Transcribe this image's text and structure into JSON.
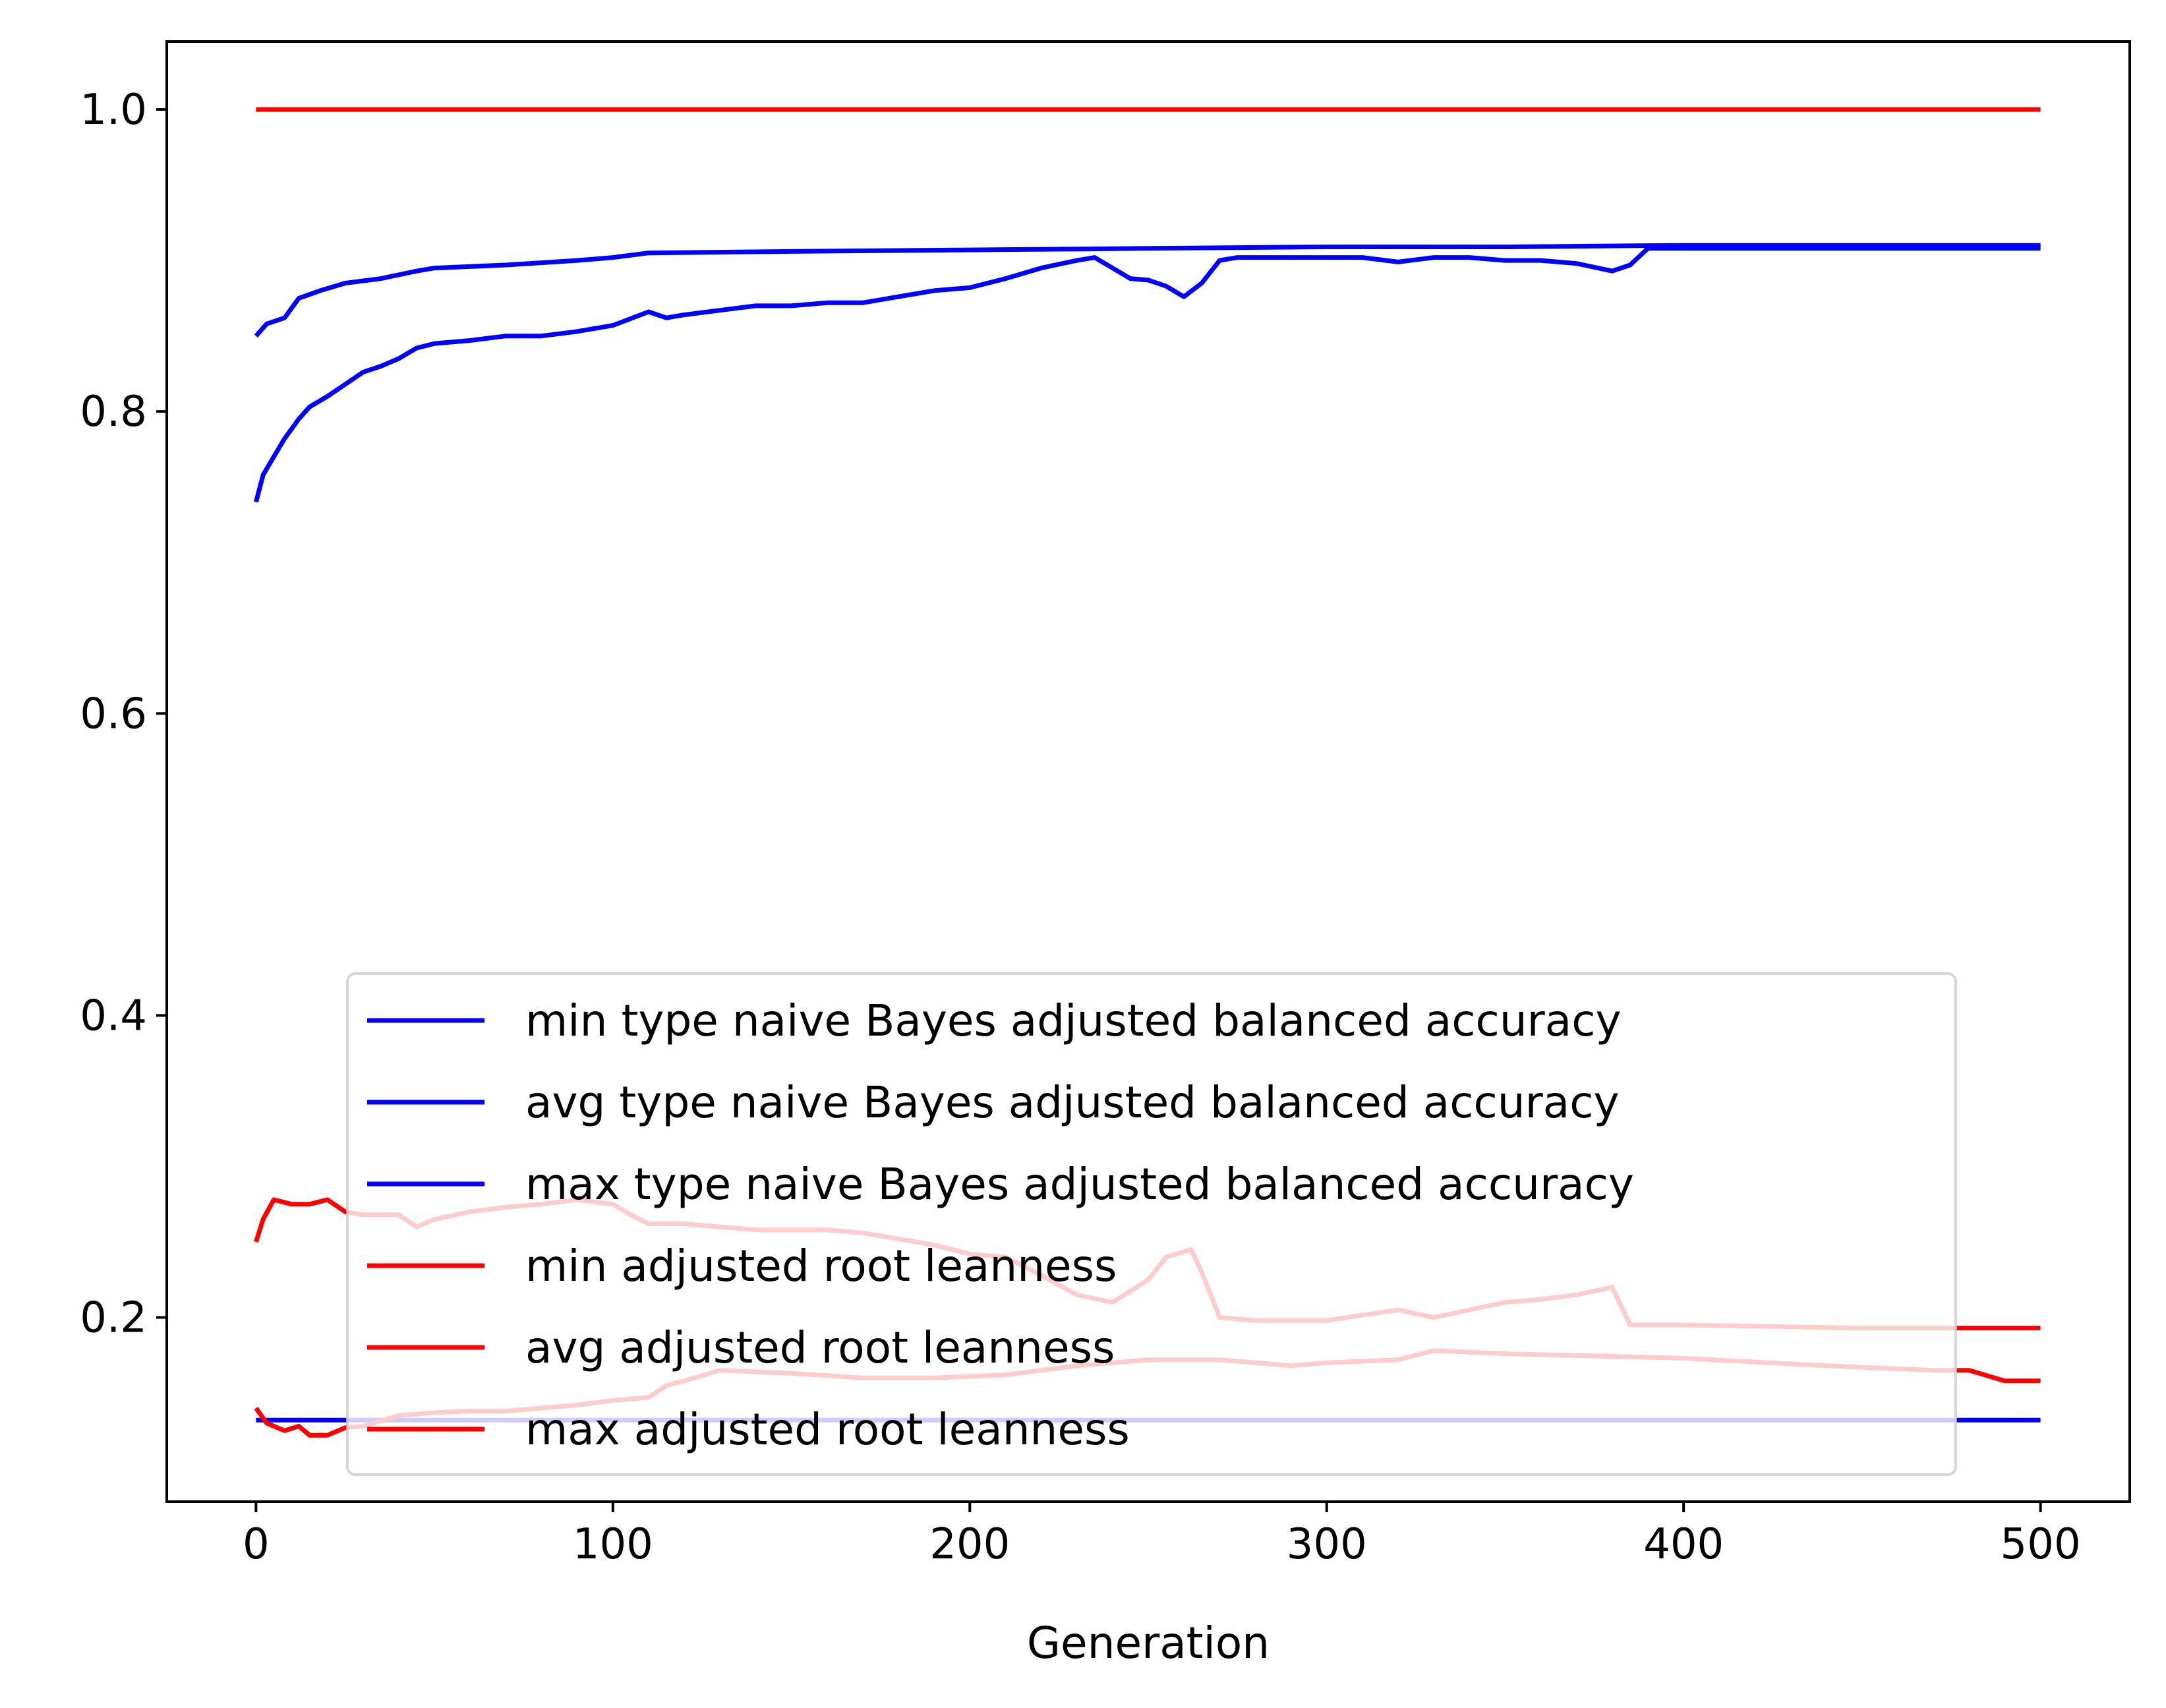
{
  "chart_data": {
    "type": "line",
    "title": "",
    "xlabel": "Generation",
    "ylabel": "",
    "xlim": [
      -25,
      525
    ],
    "ylim": [
      0.078,
      1.045
    ],
    "xticks": [
      0,
      100,
      200,
      300,
      400,
      500
    ],
    "xtick_labels": [
      "0",
      "100",
      "200",
      "300",
      "400",
      "500"
    ],
    "yticks": [
      0.2,
      0.4,
      0.6,
      0.8,
      1.0
    ],
    "ytick_labels": [
      "0.2",
      "0.4",
      "0.6",
      "0.8",
      "1.0"
    ],
    "grid": false,
    "legend_position": "lower center",
    "series": [
      {
        "name": "min type naive Bayes adjusted balanced accuracy",
        "color": "#0000ff",
        "points": [
          [
            0,
            0.132
          ],
          [
            500,
            0.132
          ]
        ]
      },
      {
        "name": "avg type naive Bayes adjusted balanced accuracy",
        "color": "#0000ff",
        "points": [
          [
            0,
            0.74
          ],
          [
            2,
            0.758
          ],
          [
            5,
            0.77
          ],
          [
            8,
            0.782
          ],
          [
            12,
            0.795
          ],
          [
            15,
            0.803
          ],
          [
            20,
            0.81
          ],
          [
            25,
            0.818
          ],
          [
            30,
            0.826
          ],
          [
            35,
            0.83
          ],
          [
            40,
            0.835
          ],
          [
            45,
            0.842
          ],
          [
            50,
            0.845
          ],
          [
            60,
            0.847
          ],
          [
            70,
            0.85
          ],
          [
            80,
            0.85
          ],
          [
            90,
            0.853
          ],
          [
            100,
            0.857
          ],
          [
            110,
            0.866
          ],
          [
            115,
            0.862
          ],
          [
            120,
            0.864
          ],
          [
            130,
            0.867
          ],
          [
            140,
            0.87
          ],
          [
            150,
            0.87
          ],
          [
            160,
            0.872
          ],
          [
            170,
            0.872
          ],
          [
            180,
            0.876
          ],
          [
            190,
            0.88
          ],
          [
            200,
            0.882
          ],
          [
            210,
            0.888
          ],
          [
            220,
            0.895
          ],
          [
            230,
            0.9
          ],
          [
            235,
            0.902
          ],
          [
            240,
            0.895
          ],
          [
            245,
            0.888
          ],
          [
            250,
            0.887
          ],
          [
            255,
            0.883
          ],
          [
            260,
            0.876
          ],
          [
            265,
            0.885
          ],
          [
            270,
            0.9
          ],
          [
            275,
            0.902
          ],
          [
            290,
            0.902
          ],
          [
            300,
            0.902
          ],
          [
            310,
            0.902
          ],
          [
            320,
            0.899
          ],
          [
            330,
            0.902
          ],
          [
            340,
            0.902
          ],
          [
            350,
            0.9
          ],
          [
            360,
            0.9
          ],
          [
            370,
            0.898
          ],
          [
            380,
            0.893
          ],
          [
            385,
            0.897
          ],
          [
            390,
            0.908
          ],
          [
            400,
            0.908
          ],
          [
            450,
            0.908
          ],
          [
            500,
            0.908
          ]
        ]
      },
      {
        "name": "max type naive Bayes adjusted balanced accuracy",
        "color": "#0000ff",
        "points": [
          [
            0,
            0.85
          ],
          [
            3,
            0.858
          ],
          [
            8,
            0.862
          ],
          [
            12,
            0.875
          ],
          [
            18,
            0.88
          ],
          [
            25,
            0.885
          ],
          [
            35,
            0.888
          ],
          [
            45,
            0.893
          ],
          [
            50,
            0.895
          ],
          [
            70,
            0.897
          ],
          [
            90,
            0.9
          ],
          [
            100,
            0.902
          ],
          [
            110,
            0.905
          ],
          [
            150,
            0.906
          ],
          [
            200,
            0.907
          ],
          [
            250,
            0.908
          ],
          [
            300,
            0.909
          ],
          [
            350,
            0.909
          ],
          [
            400,
            0.91
          ],
          [
            500,
            0.91
          ]
        ]
      },
      {
        "name": "min adjusted root leanness",
        "color": "#ff0000",
        "points": [
          [
            0,
            0.14
          ],
          [
            3,
            0.13
          ],
          [
            8,
            0.125
          ],
          [
            12,
            0.128
          ],
          [
            15,
            0.122
          ],
          [
            20,
            0.122
          ],
          [
            25,
            0.127
          ],
          [
            30,
            0.128
          ],
          [
            40,
            0.135
          ],
          [
            50,
            0.137
          ],
          [
            60,
            0.138
          ],
          [
            70,
            0.138
          ],
          [
            80,
            0.14
          ],
          [
            90,
            0.142
          ],
          [
            100,
            0.145
          ],
          [
            110,
            0.147
          ],
          [
            115,
            0.155
          ],
          [
            120,
            0.158
          ],
          [
            130,
            0.165
          ],
          [
            150,
            0.163
          ],
          [
            170,
            0.16
          ],
          [
            190,
            0.16
          ],
          [
            210,
            0.162
          ],
          [
            220,
            0.165
          ],
          [
            230,
            0.168
          ],
          [
            250,
            0.172
          ],
          [
            270,
            0.172
          ],
          [
            290,
            0.168
          ],
          [
            300,
            0.17
          ],
          [
            320,
            0.172
          ],
          [
            330,
            0.178
          ],
          [
            350,
            0.176
          ],
          [
            400,
            0.173
          ],
          [
            440,
            0.168
          ],
          [
            470,
            0.165
          ],
          [
            480,
            0.165
          ],
          [
            490,
            0.158
          ],
          [
            500,
            0.158
          ]
        ]
      },
      {
        "name": "avg adjusted root leanness",
        "color": "#ff0000",
        "points": [
          [
            0,
            0.25
          ],
          [
            2,
            0.265
          ],
          [
            5,
            0.278
          ],
          [
            10,
            0.275
          ],
          [
            15,
            0.275
          ],
          [
            20,
            0.278
          ],
          [
            25,
            0.27
          ],
          [
            30,
            0.268
          ],
          [
            40,
            0.268
          ],
          [
            45,
            0.26
          ],
          [
            50,
            0.265
          ],
          [
            60,
            0.27
          ],
          [
            70,
            0.273
          ],
          [
            80,
            0.275
          ],
          [
            90,
            0.278
          ],
          [
            100,
            0.275
          ],
          [
            105,
            0.268
          ],
          [
            110,
            0.262
          ],
          [
            120,
            0.262
          ],
          [
            130,
            0.26
          ],
          [
            140,
            0.258
          ],
          [
            150,
            0.258
          ],
          [
            160,
            0.258
          ],
          [
            170,
            0.256
          ],
          [
            180,
            0.252
          ],
          [
            190,
            0.248
          ],
          [
            200,
            0.242
          ],
          [
            210,
            0.24
          ],
          [
            220,
            0.228
          ],
          [
            230,
            0.215
          ],
          [
            240,
            0.21
          ],
          [
            250,
            0.225
          ],
          [
            255,
            0.24
          ],
          [
            262,
            0.245
          ],
          [
            265,
            0.23
          ],
          [
            270,
            0.2
          ],
          [
            280,
            0.198
          ],
          [
            300,
            0.198
          ],
          [
            320,
            0.205
          ],
          [
            330,
            0.2
          ],
          [
            350,
            0.21
          ],
          [
            360,
            0.212
          ],
          [
            370,
            0.215
          ],
          [
            380,
            0.22
          ],
          [
            385,
            0.195
          ],
          [
            400,
            0.195
          ],
          [
            450,
            0.193
          ],
          [
            500,
            0.193
          ]
        ]
      },
      {
        "name": "max adjusted root leanness",
        "color": "#ff0000",
        "points": [
          [
            0,
            1.0
          ],
          [
            500,
            1.0
          ]
        ]
      }
    ]
  }
}
